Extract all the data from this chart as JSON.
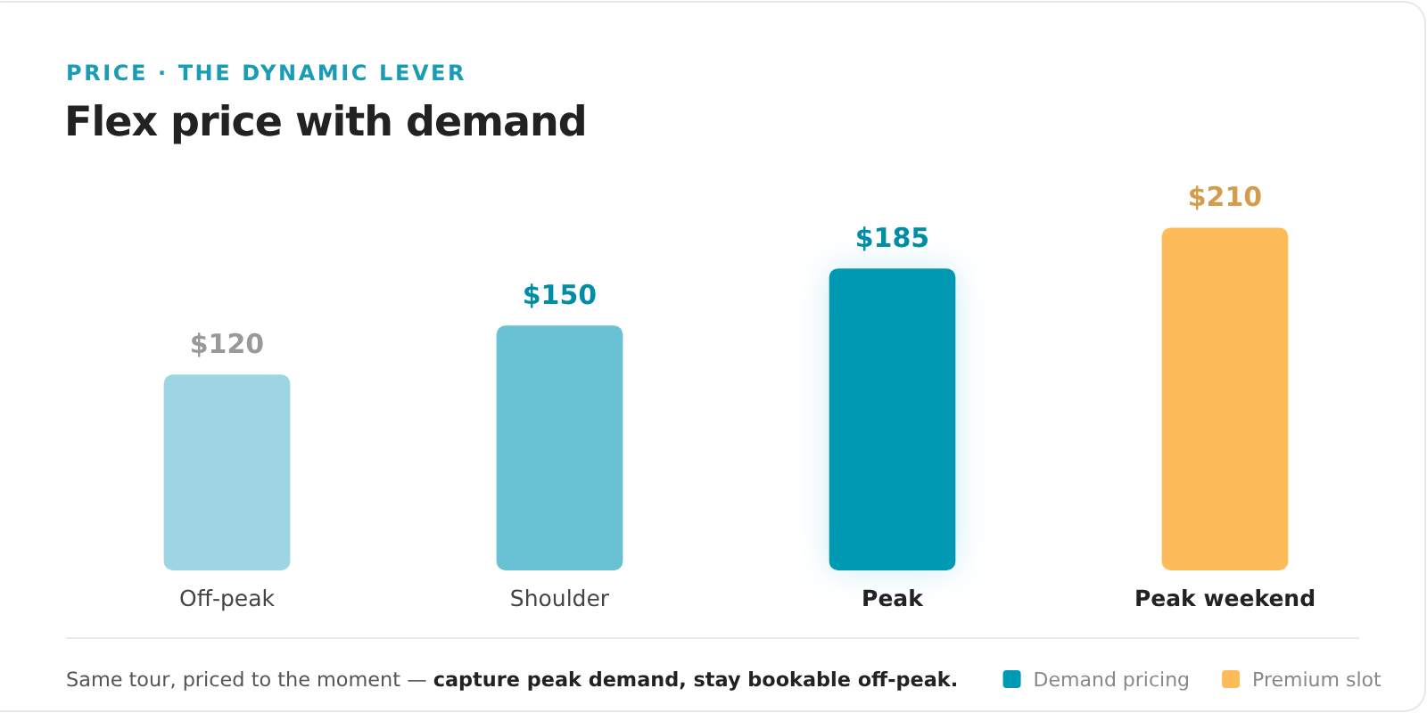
{
  "chart_data": {
    "type": "bar",
    "subtitle": "PRICE · THE DYNAMIC LEVER",
    "title": "Flex price with demand",
    "categories": [
      "Off-peak",
      "Shoulder",
      "Peak",
      "Peak weekend"
    ],
    "series": [
      {
        "name": "Demand pricing",
        "color": "#0099b3",
        "colors": [
          "#9dd6e2",
          "#68c2d3",
          "#0099b3",
          null
        ],
        "values": [
          120,
          150,
          185,
          null
        ],
        "value_labels": [
          "$120",
          "$150",
          "$185",
          null
        ]
      },
      {
        "name": "Premium slot",
        "color": "#fdbb5a",
        "values": [
          null,
          null,
          null,
          210
        ],
        "value_labels": [
          null,
          null,
          null,
          "$210"
        ]
      }
    ],
    "legend": "bottom right",
    "grid": false,
    "annotations": [
      "Same tour, priced to the moment — ",
      "capture peak demand, stay bookable off-peak."
    ]
  }
}
